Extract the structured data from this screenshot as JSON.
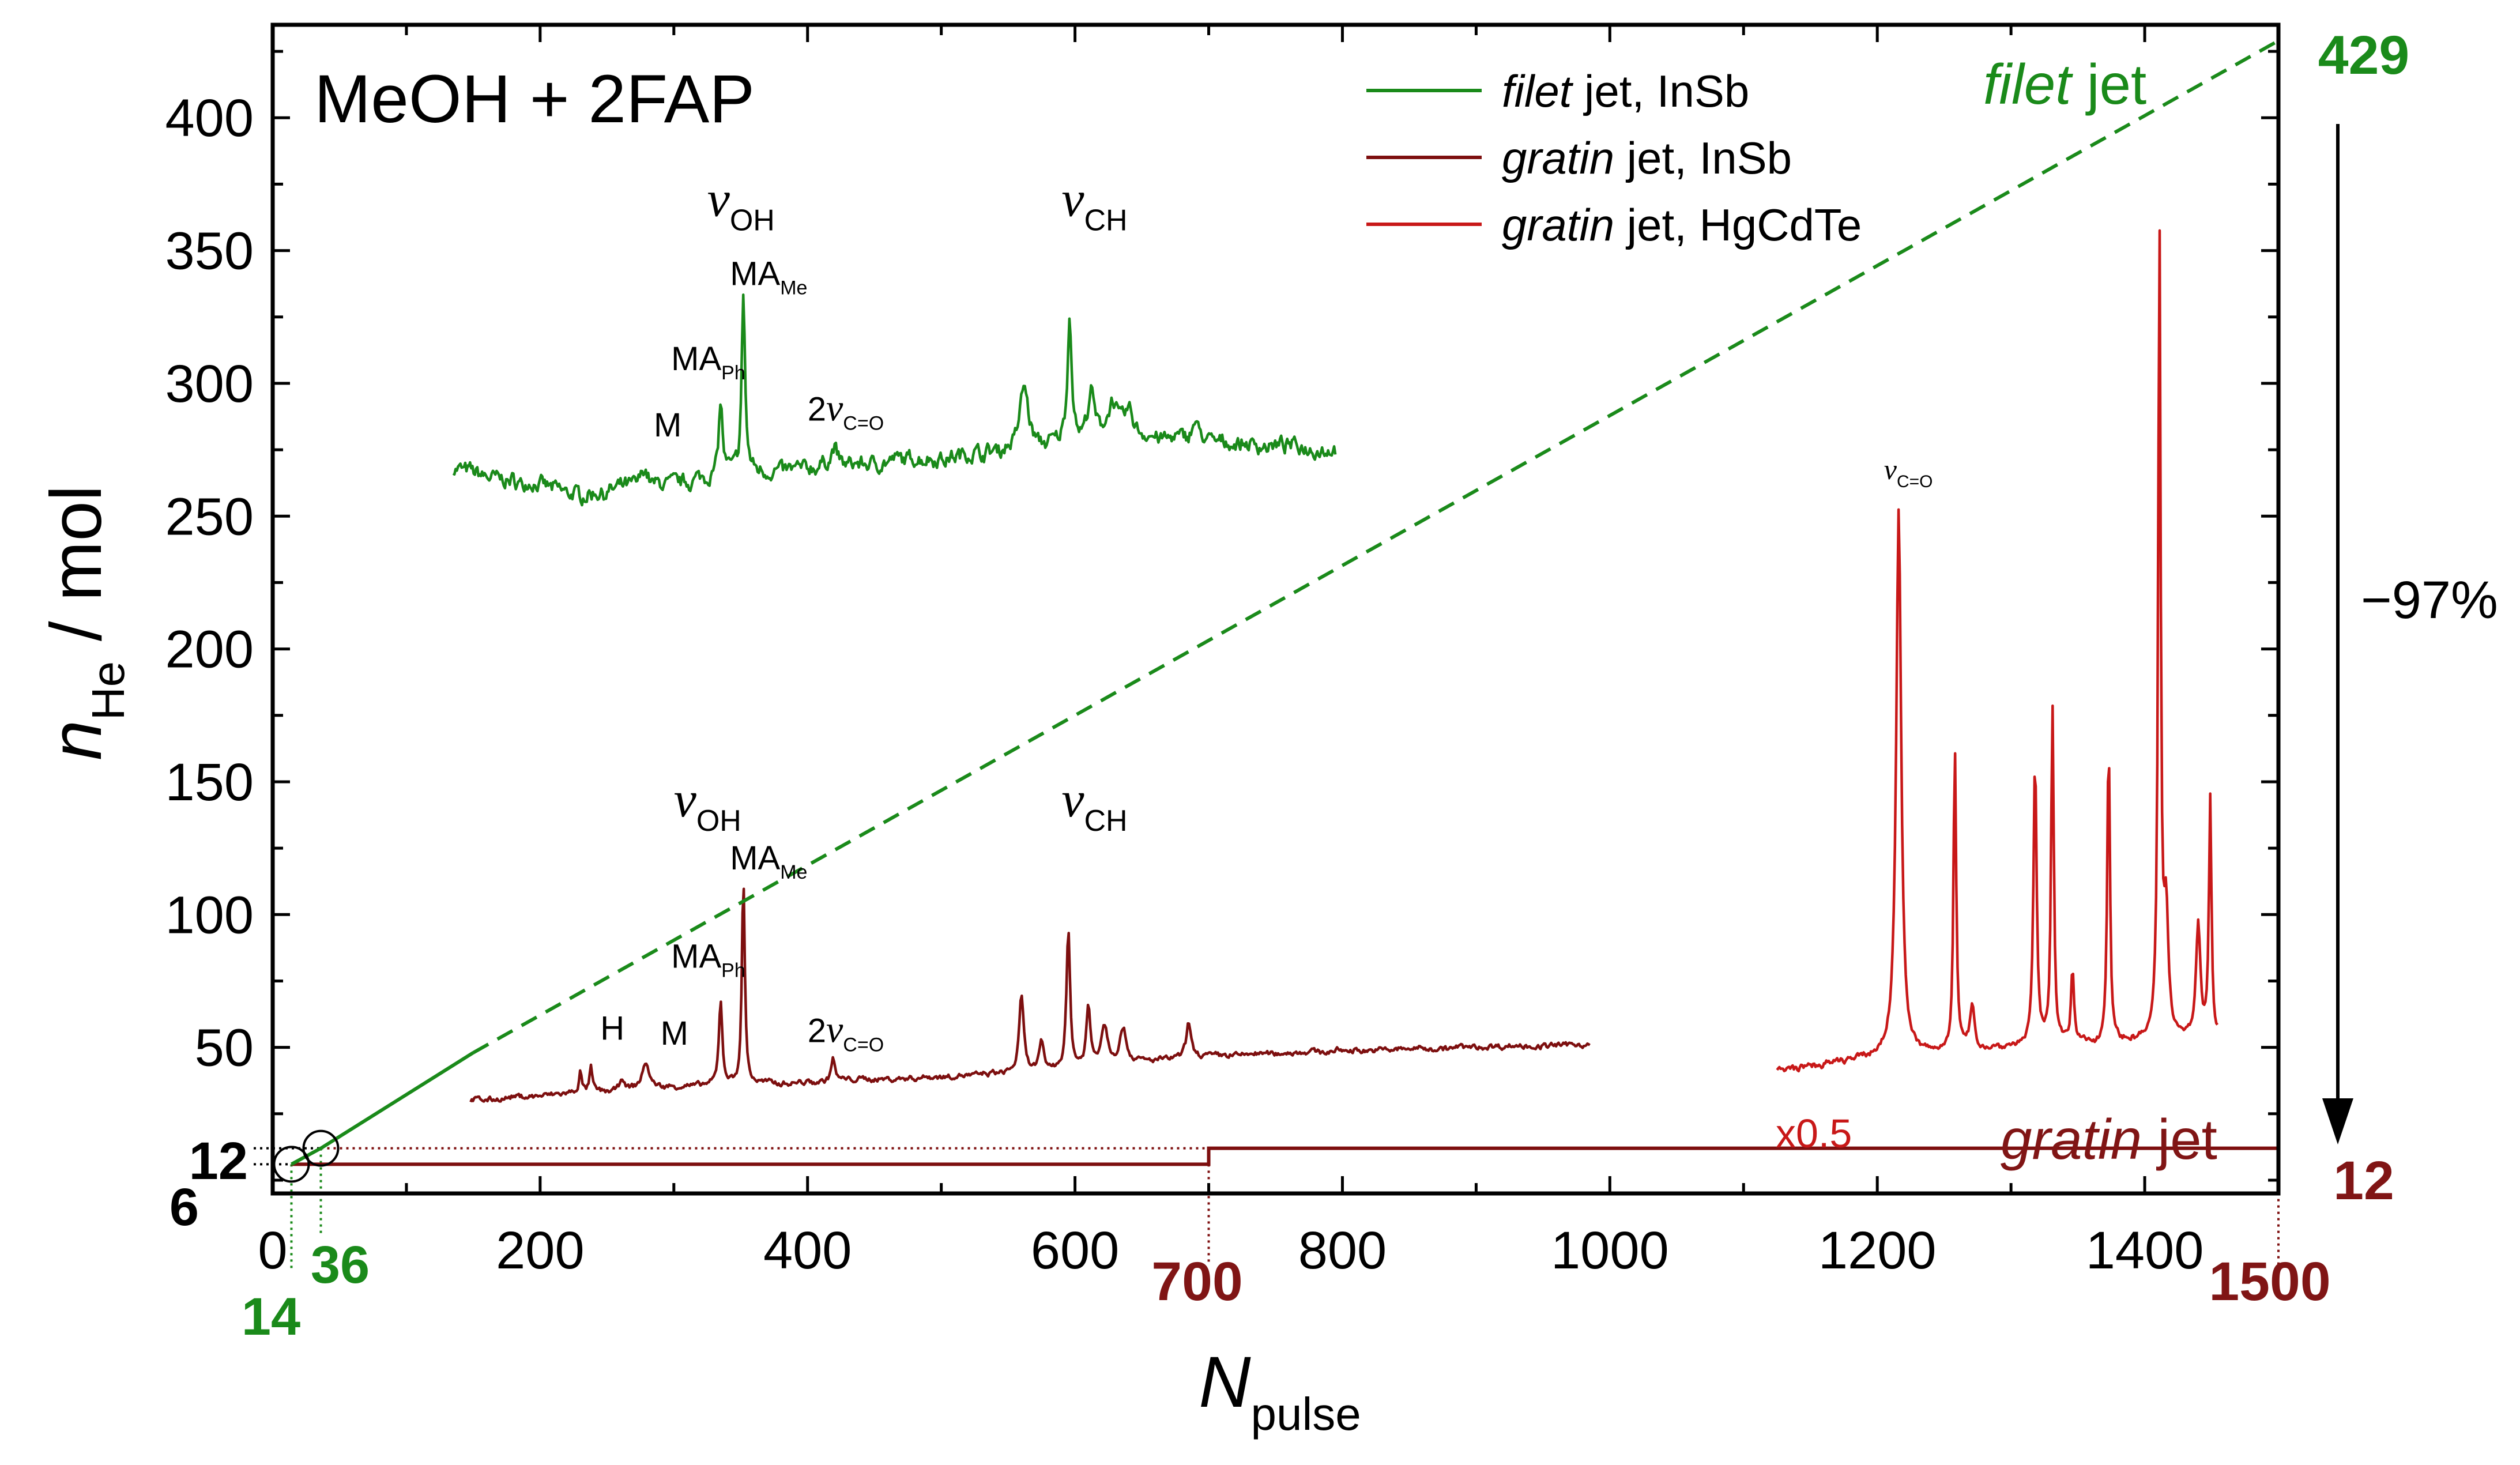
{
  "chart_data": {
    "type": "line",
    "title": "MeOH + 2FAP",
    "xlabel": {
      "main": "N",
      "sub": "pulse"
    },
    "ylabel": {
      "main": "n",
      "sub": "He",
      "unit": " / mol"
    },
    "xlim": [
      0,
      1500
    ],
    "ylim": [
      -5,
      435
    ],
    "xticks": [
      0,
      200,
      400,
      600,
      800,
      1000,
      1200,
      1400
    ],
    "xtick_labels": [
      "0",
      "200",
      "400",
      "600",
      "800",
      "1000",
      "1200",
      "1400"
    ],
    "yticks": [
      50,
      100,
      150,
      200,
      250,
      300,
      350,
      400
    ],
    "ytick_labels": [
      "50",
      "100",
      "150",
      "200",
      "250",
      "300",
      "350",
      "400"
    ],
    "colors": {
      "filet": "#1a8a1a",
      "gratin_insb": "#7d0f0f",
      "gratin_hgcdte": "#c81818",
      "gratin_text": "#801515",
      "black": "#000000"
    },
    "legend": [
      {
        "italic": "filet",
        "rest": " jet, InSb",
        "color": "#1a8a1a"
      },
      {
        "italic": "gratin",
        "rest": " jet, InSb",
        "color": "#7d0f0f"
      },
      {
        "italic": "gratin",
        "rest": " jet, HgCdTe",
        "color": "#c81818"
      }
    ],
    "legend_position": "top-center",
    "lines": {
      "filet_solid": {
        "x": [
          14,
          36,
          150
        ],
        "y": [
          6,
          12,
          48
        ]
      },
      "filet_dashed": {
        "x": [
          150,
          1500
        ],
        "y": [
          48,
          429
        ]
      },
      "gratin_step": {
        "x": [
          14,
          700,
          700,
          1500
        ],
        "y": [
          6,
          6,
          12,
          12
        ]
      }
    },
    "guides": {
      "h6_to_x": 14,
      "h12_to_x": 36,
      "h12b_to_x": 700,
      "v14_to_y": 6,
      "v36_to_y": 12,
      "v700_to_y": 6,
      "v1500_to_y": 12
    },
    "markers": [
      {
        "x": 14,
        "y": 6
      },
      {
        "x": 36,
        "y": 12
      }
    ],
    "spectra": [
      {
        "name": "filet-insb",
        "color": "#1a8a1a",
        "x_start": 135,
        "x_end": 795,
        "baseline": [
          [
            135,
            268
          ],
          [
            230,
            258
          ],
          [
            350,
            266
          ],
          [
            500,
            272
          ],
          [
            560,
            275
          ],
          [
            650,
            279
          ],
          [
            795,
            275
          ]
        ],
        "noise": 2.6,
        "peaks": [
          [
            278,
            7,
            3
          ],
          [
            335,
            28,
            1.8
          ],
          [
            352,
            67,
            1.5
          ],
          [
            420,
            7,
            3
          ],
          [
            562,
            24,
            4
          ],
          [
            596,
            47,
            2
          ],
          [
            612,
            18,
            3
          ],
          [
            628,
            14,
            4
          ],
          [
            640,
            10,
            5
          ],
          [
            690,
            8,
            3
          ]
        ]
      },
      {
        "name": "gratin-insb",
        "color": "#7d0f0f",
        "x_start": 148,
        "x_end": 985,
        "baseline": [
          [
            148,
            30
          ],
          [
            300,
            35
          ],
          [
            450,
            38
          ],
          [
            560,
            40
          ],
          [
            700,
            47
          ],
          [
            880,
            50
          ],
          [
            985,
            51
          ]
        ],
        "noise": 0.9,
        "peaks": [
          [
            230,
            8,
            1.2
          ],
          [
            238,
            9,
            1.2
          ],
          [
            261,
            5,
            1.5
          ],
          [
            279,
            10,
            3
          ],
          [
            335,
            32,
            1.5
          ],
          [
            352,
            77,
            1.3
          ],
          [
            419,
            9,
            1.6
          ],
          [
            560,
            29,
            2
          ],
          [
            575,
            10,
            2
          ],
          [
            595,
            52,
            1.6
          ],
          [
            610,
            22,
            1.8
          ],
          [
            622,
            15,
            3
          ],
          [
            636,
            13,
            3
          ],
          [
            685,
            13,
            2
          ]
        ]
      },
      {
        "name": "gratin-hgcdte",
        "color": "#c81818",
        "x_start": 1125,
        "x_end": 1455,
        "baseline": [
          [
            1125,
            41
          ],
          [
            1200,
            46
          ],
          [
            1300,
            50
          ],
          [
            1400,
            52
          ],
          [
            1455,
            54
          ]
        ],
        "noise": 1.1,
        "peaks": [
          [
            1216,
            207,
            2.2
          ],
          [
            1258,
            115,
            1.2
          ],
          [
            1271,
            15,
            2
          ],
          [
            1318,
            108,
            1.4
          ],
          [
            1331,
            128,
            1.2
          ],
          [
            1346,
            28,
            1.3
          ],
          [
            1373,
            116,
            1.2
          ],
          [
            1411,
            306,
            1.1
          ],
          [
            1416,
            46,
            2
          ],
          [
            1440,
            42,
            2
          ],
          [
            1449,
            90,
            1.1
          ]
        ]
      }
    ],
    "annotations": [
      {
        "text": "MeOH + 2FAP",
        "kind": "title"
      },
      {
        "main": "ν",
        "sub": "OH",
        "x": 325,
        "y": 363,
        "kind": "nu"
      },
      {
        "main": "ν",
        "sub": "CH",
        "x": 590,
        "y": 363,
        "kind": "nu"
      },
      {
        "main": "MA",
        "sub": "Me",
        "x": 342,
        "y": 337,
        "kind": "ma"
      },
      {
        "main": "MA",
        "sub": "Ph",
        "x": 298,
        "y": 305,
        "kind": "ma"
      },
      {
        "main": "M",
        "x": 285,
        "y": 280,
        "kind": "plain"
      },
      {
        "pre": "2",
        "main": "ν",
        "sub": "C=O",
        "x": 400,
        "y": 286,
        "kind": "nu2"
      },
      {
        "main": "ν",
        "sub": "OH",
        "x": 300,
        "y": 137,
        "kind": "nu"
      },
      {
        "main": "ν",
        "sub": "CH",
        "x": 590,
        "y": 137,
        "kind": "nu"
      },
      {
        "main": "MA",
        "sub": "Me",
        "x": 342,
        "y": 117,
        "kind": "ma"
      },
      {
        "main": "MA",
        "sub": "Ph",
        "x": 298,
        "y": 80,
        "kind": "ma"
      },
      {
        "main": "H",
        "x": 245,
        "y": 53,
        "kind": "plain"
      },
      {
        "main": "M",
        "x": 290,
        "y": 51,
        "kind": "plain"
      },
      {
        "pre": "2",
        "main": "ν",
        "sub": "C=O",
        "x": 400,
        "y": 52,
        "kind": "nu2"
      },
      {
        "main": "ν",
        "sub": "C=O",
        "x": 1205,
        "y": 264,
        "kind": "nu_small"
      }
    ],
    "callouts": {
      "filet_jet": {
        "italic": "filet",
        "rest": " jet"
      },
      "gratin_jet": {
        "italic": "gratin",
        "rest": " jet"
      },
      "scale": "x0.5",
      "percent": "−97%",
      "val_429": "429",
      "val_12_right": "12",
      "val_12_left": "12",
      "val_6_left": "6",
      "val_14": "14",
      "val_36": "36",
      "val_700": "700",
      "val_1500": "1500"
    }
  }
}
